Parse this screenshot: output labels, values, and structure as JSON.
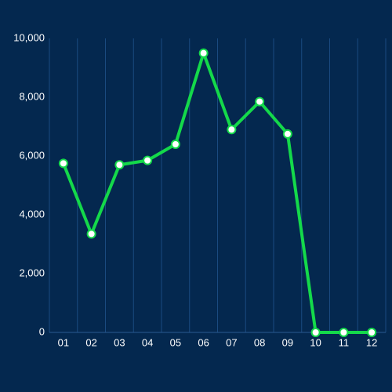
{
  "chart_data": {
    "type": "line",
    "categories": [
      "01",
      "02",
      "03",
      "04",
      "05",
      "06",
      "07",
      "08",
      "09",
      "10",
      "11",
      "12"
    ],
    "values": [
      5750,
      3350,
      5700,
      5850,
      6400,
      9500,
      6900,
      7850,
      6750,
      0,
      0,
      0
    ],
    "color": "#14d94a",
    "ylim": [
      0,
      10000
    ],
    "yticks": [
      0,
      {
        "value": 2000,
        "label": "2,000"
      },
      {
        "value": 4000,
        "label": "4,000"
      },
      {
        "value": 6000,
        "label": "6,000"
      },
      {
        "value": 8000,
        "label": "8,000"
      },
      {
        "value": 10000,
        "label": "10,000"
      }
    ],
    "grid": true
  }
}
